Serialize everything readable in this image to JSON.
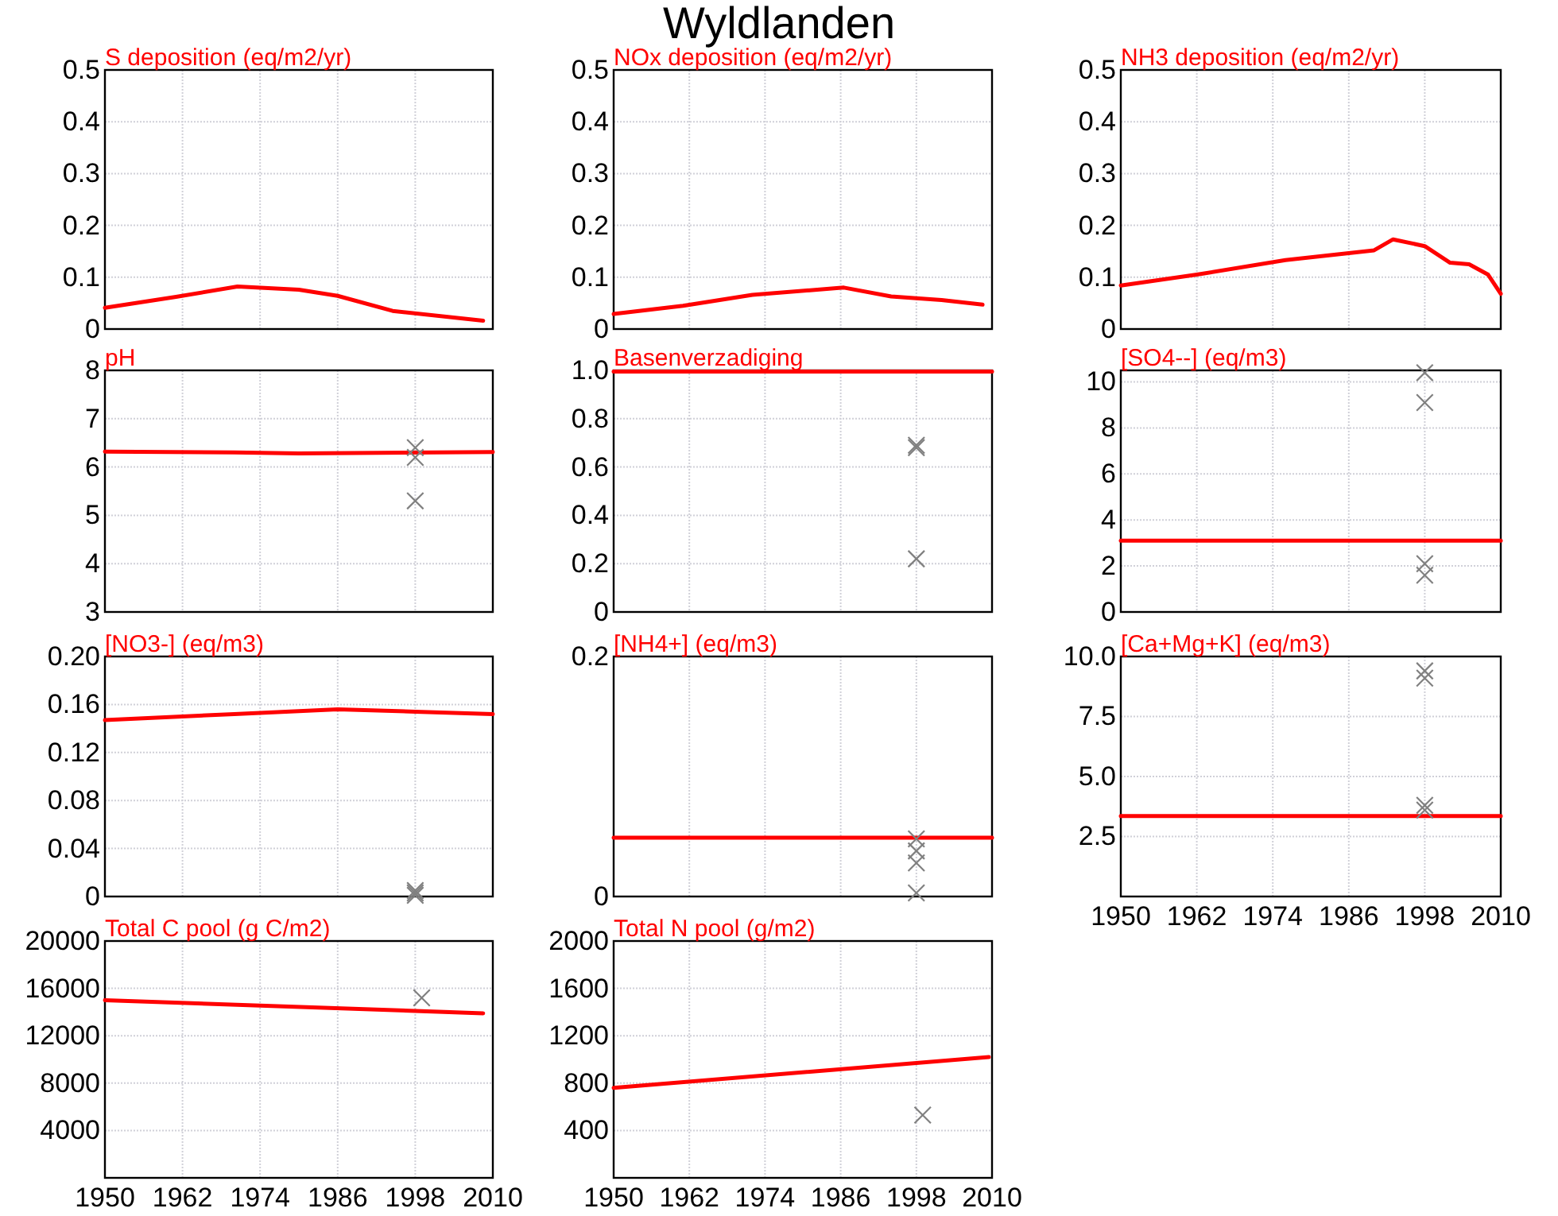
{
  "chart_data": [
    {
      "type": "line",
      "title": "S deposition (eq/m2/yr)",
      "annotations": [
        "Wyldlanden"
      ],
      "xlim": [
        1950,
        2010
      ],
      "xticks": [
        1950,
        1962,
        1974,
        1986,
        1998,
        2010
      ],
      "ylim": [
        0,
        0.5
      ],
      "yticks": [
        0,
        0.1,
        0.2,
        0.3,
        0.4,
        0.5
      ],
      "grid": true,
      "tick_labels": "y",
      "series": [
        {
          "type": "line",
          "color": "#ff0000",
          "x": [
            1950,
            1961,
            1970.5,
            1980,
            1986,
            1994.5,
            2008.5
          ],
          "values": [
            0.041,
            0.062,
            0.082,
            0.076,
            0.064,
            0.035,
            0.016
          ]
        }
      ]
    },
    {
      "type": "line",
      "title": "NOx deposition (eq/m2/yr)",
      "xlim": [
        1950,
        2010
      ],
      "xticks": [
        1950,
        1962,
        1974,
        1986,
        1998,
        2010
      ],
      "ylim": [
        0,
        0.5
      ],
      "yticks": [
        0,
        0.1,
        0.2,
        0.3,
        0.4,
        0.5
      ],
      "grid": true,
      "tick_labels": "y",
      "series": [
        {
          "type": "line",
          "color": "#ff0000",
          "x": [
            1950,
            1961,
            1972,
            1986.5,
            1994,
            2002,
            2008.5
          ],
          "values": [
            0.029,
            0.045,
            0.066,
            0.08,
            0.063,
            0.056,
            0.047
          ]
        }
      ]
    },
    {
      "type": "line",
      "title": "NH3 deposition (eq/m2/yr)",
      "xlim": [
        1950,
        2010
      ],
      "xticks": [
        1950,
        1962,
        1974,
        1986,
        1998,
        2010
      ],
      "ylim": [
        0,
        0.5
      ],
      "yticks": [
        0,
        0.1,
        0.2,
        0.3,
        0.4,
        0.5
      ],
      "grid": true,
      "tick_labels": "y",
      "series": [
        {
          "type": "line",
          "color": "#ff0000",
          "x": [
            1950,
            1962,
            1976,
            1990,
            1993,
            1998,
            2002,
            2005,
            2008,
            2010
          ],
          "values": [
            0.084,
            0.105,
            0.133,
            0.152,
            0.173,
            0.16,
            0.128,
            0.125,
            0.105,
            0.068
          ]
        }
      ]
    },
    {
      "type": "line",
      "title": "pH",
      "xlim": [
        1950,
        2010
      ],
      "xticks": [
        1950,
        1962,
        1974,
        1986,
        1998,
        2010
      ],
      "ylim": [
        3,
        8
      ],
      "yticks": [
        3,
        4,
        5,
        6,
        7,
        8
      ],
      "grid": true,
      "tick_labels": "y",
      "series": [
        {
          "type": "line",
          "color": "#ff0000",
          "x": [
            1950,
            1970,
            1980,
            2010
          ],
          "values": [
            6.32,
            6.3,
            6.28,
            6.31
          ]
        },
        {
          "type": "scatter",
          "color": "#808080",
          "marker": "cross",
          "x": [
            1998,
            1998,
            1998
          ],
          "values": [
            6.4,
            6.2,
            5.3
          ]
        }
      ]
    },
    {
      "type": "line",
      "title": "Basenverzadiging",
      "xlim": [
        1950,
        2010
      ],
      "xticks": [
        1950,
        1962,
        1974,
        1986,
        1998,
        2010
      ],
      "ylim": [
        0,
        1
      ],
      "yticks": [
        {
          "value": 0,
          "label": "0"
        },
        {
          "value": 0.2,
          "label": "0.2"
        },
        {
          "value": 0.4,
          "label": "0.4"
        },
        {
          "value": 0.6,
          "label": "0.6"
        },
        {
          "value": 0.8,
          "label": "0.8"
        },
        {
          "value": 1,
          "label": "1.0"
        }
      ],
      "grid": true,
      "tick_labels": "y",
      "series": [
        {
          "type": "line",
          "color": "#ff0000",
          "x": [
            1950,
            2010
          ],
          "values": [
            0.995,
            0.995
          ]
        },
        {
          "type": "scatter",
          "color": "#808080",
          "marker": "cross",
          "x": [
            1998,
            1998,
            1998
          ],
          "values": [
            0.69,
            0.68,
            0.22
          ]
        }
      ]
    },
    {
      "type": "line",
      "title": "[SO4--] (eq/m3)",
      "xlim": [
        1950,
        2010
      ],
      "xticks": [
        1950,
        1962,
        1974,
        1986,
        1998,
        2010
      ],
      "ylim": [
        0,
        10.5
      ],
      "yticks": [
        0,
        2,
        4,
        6,
        8,
        10
      ],
      "grid": true,
      "tick_labels": "y",
      "series": [
        {
          "type": "line",
          "color": "#ff0000",
          "x": [
            1950,
            2010
          ],
          "values": [
            3.1,
            3.1
          ]
        },
        {
          "type": "scatter",
          "color": "#808080",
          "marker": "cross",
          "x": [
            1998,
            1998,
            1998,
            1998
          ],
          "values": [
            10.4,
            9.1,
            2.1,
            1.6
          ]
        }
      ]
    },
    {
      "type": "line",
      "title": "[NO3-] (eq/m3)",
      "xlim": [
        1950,
        2010
      ],
      "xticks": [
        1950,
        1962,
        1974,
        1986,
        1998,
        2010
      ],
      "ylim": [
        0,
        0.2
      ],
      "yticks": [
        0,
        0.04,
        0.08,
        0.12,
        0.16,
        {
          "value": 0.2,
          "label": "0.20"
        }
      ],
      "grid": true,
      "tick_labels": "y",
      "series": [
        {
          "type": "line",
          "color": "#ff0000",
          "x": [
            1950,
            1970,
            1986,
            1998,
            2010
          ],
          "values": [
            0.147,
            0.152,
            0.156,
            0.154,
            0.152
          ]
        },
        {
          "type": "scatter",
          "color": "#808080",
          "marker": "cross",
          "x": [
            1998,
            1998,
            1998
          ],
          "values": [
            0.005,
            0.003,
            0.001
          ]
        }
      ]
    },
    {
      "type": "line",
      "title": "[NH4+] (eq/m3)",
      "xlim": [
        1950,
        2010
      ],
      "xticks": [
        1950,
        1962,
        1974,
        1986,
        1998,
        2010
      ],
      "ylim": [
        0,
        0.2
      ],
      "yticks": [
        0,
        0.2
      ],
      "grid": true,
      "tick_labels": "y",
      "series": [
        {
          "type": "line",
          "color": "#ff0000",
          "x": [
            1950,
            2010
          ],
          "values": [
            0.049,
            0.049
          ]
        },
        {
          "type": "scatter",
          "color": "#808080",
          "marker": "cross",
          "x": [
            1998,
            1998,
            1998,
            1998
          ],
          "values": [
            0.048,
            0.038,
            0.028,
            0.003
          ]
        }
      ]
    },
    {
      "type": "line",
      "title": "[Ca+Mg+K] (eq/m3)",
      "xlim": [
        1950,
        2010
      ],
      "xticks": [
        1950,
        1962,
        1974,
        1986,
        1998,
        2010
      ],
      "ylim": [
        0,
        10
      ],
      "yticks": [
        2.5,
        {
          "value": 5,
          "label": "5.0"
        },
        7.5,
        {
          "value": 10,
          "label": "10.0"
        }
      ],
      "grid": true,
      "series": [
        {
          "type": "line",
          "color": "#ff0000",
          "x": [
            1950,
            2010
          ],
          "values": [
            3.35,
            3.35
          ]
        },
        {
          "type": "scatter",
          "color": "#808080",
          "marker": "cross",
          "x": [
            1998,
            1998,
            1998,
            1998
          ],
          "values": [
            9.4,
            9.1,
            3.8,
            3.6
          ]
        }
      ]
    },
    {
      "type": "line",
      "title": "Total C pool (g C/m2)",
      "xlim": [
        1950,
        2010
      ],
      "xticks": [
        1950,
        1962,
        1974,
        1986,
        1998,
        2010
      ],
      "ylim": [
        0,
        20000
      ],
      "yticks": [
        4000,
        8000,
        12000,
        16000,
        20000
      ],
      "grid": true,
      "series": [
        {
          "type": "line",
          "color": "#ff0000",
          "x": [
            1950,
            2008.5
          ],
          "values": [
            15000,
            13900
          ]
        },
        {
          "type": "scatter",
          "color": "#808080",
          "marker": "cross",
          "x": [
            1999
          ],
          "values": [
            15200
          ]
        }
      ]
    },
    {
      "type": "line",
      "title": "Total N pool (g/m2)",
      "xlim": [
        1950,
        2010
      ],
      "xticks": [
        1950,
        1962,
        1974,
        1986,
        1998,
        2010
      ],
      "ylim": [
        0,
        2000
      ],
      "yticks": [
        400,
        800,
        1200,
        1600,
        2000
      ],
      "grid": true,
      "series": [
        {
          "type": "line",
          "color": "#ff0000",
          "x": [
            1950,
            2009.5
          ],
          "values": [
            760,
            1020
          ]
        },
        {
          "type": "scatter",
          "color": "#808080",
          "marker": "cross",
          "x": [
            1999
          ],
          "values": [
            530
          ]
        }
      ]
    }
  ]
}
